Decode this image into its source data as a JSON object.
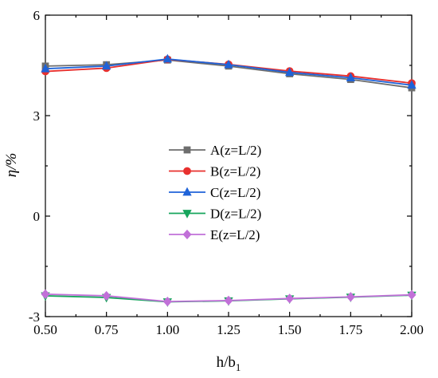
{
  "chart_data": {
    "type": "line",
    "x": [
      0.5,
      0.75,
      1.0,
      1.25,
      1.5,
      1.75,
      2.0
    ],
    "x_tick_labels": [
      "0.50",
      "0.75",
      "1.00",
      "1.25",
      "1.50",
      "1.75",
      "2.00"
    ],
    "y_tick_labels": [
      "-3",
      "0",
      "3",
      "6"
    ],
    "y_ticks": [
      -3,
      0,
      3,
      6
    ],
    "xlim": [
      0.5,
      2.0
    ],
    "ylim": [
      -3,
      6
    ],
    "xlabel": {
      "main": "h/b",
      "sub": "1"
    },
    "ylabel": "η/%",
    "grid": false,
    "legend_position": "center",
    "series": [
      {
        "name": "A(z=L/2)",
        "color": "#6e6e6e",
        "marker": "square",
        "values": [
          4.48,
          4.52,
          4.66,
          4.48,
          4.25,
          4.08,
          3.83
        ]
      },
      {
        "name": "B(z=L/2)",
        "color": "#e8302e",
        "marker": "circle",
        "values": [
          4.32,
          4.42,
          4.68,
          4.53,
          4.33,
          4.18,
          3.97
        ]
      },
      {
        "name": "C(z=L/2)",
        "color": "#1f63d8",
        "marker": "triangle-up",
        "values": [
          4.4,
          4.48,
          4.69,
          4.52,
          4.29,
          4.13,
          3.91
        ]
      },
      {
        "name": "D(z=L/2)",
        "color": "#16a55c",
        "marker": "triangle-down",
        "values": [
          -2.38,
          -2.43,
          -2.56,
          -2.53,
          -2.47,
          -2.42,
          -2.36
        ]
      },
      {
        "name": "E(z=L/2)",
        "color": "#c170d8",
        "marker": "diamond",
        "values": [
          -2.33,
          -2.38,
          -2.55,
          -2.52,
          -2.46,
          -2.41,
          -2.35
        ]
      }
    ]
  }
}
